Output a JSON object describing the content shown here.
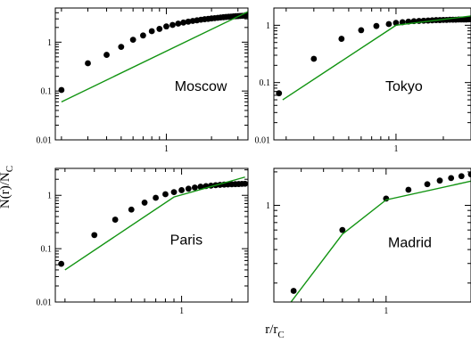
{
  "figure": {
    "ylabel": "N(r)/N",
    "ylabel_sub": "C",
    "xlabel": "r/r",
    "xlabel_sub": "C"
  },
  "chart_data": [
    {
      "type": "scatter",
      "city": "Moscow",
      "xscale": "log",
      "yscale": "log",
      "xlim": [
        0.182,
        3.5
      ],
      "ylim": [
        0.01,
        5
      ],
      "xticks": [
        {
          "v": 1,
          "label": "1"
        }
      ],
      "yticks": [
        {
          "v": 0.01,
          "label": "0.01"
        },
        {
          "v": 0.1,
          "label": "0.1"
        },
        {
          "v": 1,
          "label": "1"
        }
      ],
      "legend": "none",
      "series": [
        {
          "kind": "points",
          "x": [
            0.2,
            0.3,
            0.4,
            0.5,
            0.6,
            0.7,
            0.8,
            0.9,
            1.0,
            1.1,
            1.2,
            1.3,
            1.4,
            1.5,
            1.6,
            1.7,
            1.8,
            1.9,
            2.0,
            2.1,
            2.2,
            2.3,
            2.4,
            2.5,
            2.6,
            2.7,
            2.8,
            2.9,
            3.0,
            3.1,
            3.2,
            3.3,
            3.4,
            3.5
          ],
          "y": [
            0.105,
            0.37,
            0.55,
            0.8,
            1.12,
            1.37,
            1.68,
            1.87,
            2.1,
            2.25,
            2.4,
            2.52,
            2.63,
            2.72,
            2.8,
            2.88,
            2.95,
            3.0,
            3.06,
            3.1,
            3.15,
            3.2,
            3.24,
            3.28,
            3.31,
            3.34,
            3.37,
            3.4,
            3.42,
            3.44,
            3.46,
            3.48,
            3.5,
            3.52
          ]
        },
        {
          "kind": "line",
          "x": [
            0.2,
            3.5
          ],
          "y": [
            0.06,
            4.2
          ]
        }
      ]
    },
    {
      "type": "scatter",
      "city": "Tokyo",
      "xscale": "log",
      "yscale": "log",
      "xlim": [
        0.167,
        3.0
      ],
      "ylim": [
        0.01,
        2.0
      ],
      "xticks": [
        {
          "v": 1,
          "label": "1"
        }
      ],
      "yticks": [
        {
          "v": 0.01,
          "label": "0.01"
        },
        {
          "v": 0.1,
          "label": "0.1"
        },
        {
          "v": 1,
          "label": "1"
        }
      ],
      "legend": "none",
      "series": [
        {
          "kind": "points",
          "x": [
            0.18,
            0.3,
            0.45,
            0.6,
            0.75,
            0.9,
            1.0,
            1.1,
            1.2,
            1.3,
            1.4,
            1.5,
            1.6,
            1.7,
            1.8,
            1.9,
            2.0,
            2.1,
            2.2,
            2.3,
            2.4,
            2.5,
            2.6,
            2.7,
            2.8,
            2.9,
            3.0
          ],
          "y": [
            0.065,
            0.26,
            0.58,
            0.82,
            0.97,
            1.05,
            1.1,
            1.13,
            1.16,
            1.18,
            1.19,
            1.2,
            1.21,
            1.22,
            1.23,
            1.23,
            1.24,
            1.24,
            1.25,
            1.25,
            1.25,
            1.26,
            1.26,
            1.26,
            1.26,
            1.27,
            1.27
          ]
        },
        {
          "kind": "line",
          "x": [
            0.19,
            1.0,
            3.0
          ],
          "y": [
            0.05,
            1.0,
            1.45
          ]
        }
      ]
    },
    {
      "type": "scatter",
      "city": "Paris",
      "xscale": "log",
      "yscale": "log",
      "xlim": [
        0.175,
        2.5
      ],
      "ylim": [
        0.01,
        3.2
      ],
      "xticks": [
        {
          "v": 1,
          "label": "1"
        }
      ],
      "yticks": [
        {
          "v": 0.01,
          "label": "0.01"
        },
        {
          "v": 0.1,
          "label": "0.1"
        },
        {
          "v": 1,
          "label": "1"
        }
      ],
      "legend": "none",
      "series": [
        {
          "kind": "points",
          "x": [
            0.19,
            0.3,
            0.4,
            0.5,
            0.6,
            0.7,
            0.8,
            0.9,
            1.0,
            1.1,
            1.2,
            1.3,
            1.4,
            1.5,
            1.6,
            1.7,
            1.8,
            1.9,
            2.0,
            2.1,
            2.2,
            2.3,
            2.4
          ],
          "y": [
            0.052,
            0.18,
            0.35,
            0.54,
            0.73,
            0.9,
            1.05,
            1.15,
            1.25,
            1.33,
            1.4,
            1.45,
            1.49,
            1.52,
            1.55,
            1.57,
            1.59,
            1.6,
            1.61,
            1.62,
            1.63,
            1.64,
            1.65
          ]
        },
        {
          "kind": "line",
          "x": [
            0.2,
            0.9,
            2.4
          ],
          "y": [
            0.04,
            0.93,
            2.2
          ]
        }
      ]
    },
    {
      "type": "scatter",
      "city": "Madrid",
      "xscale": "log",
      "yscale": "log",
      "xlim": [
        0.4,
        2.0
      ],
      "ylim": [
        0.135,
        2.15
      ],
      "xticks": [
        {
          "v": 1,
          "label": "1"
        }
      ],
      "yticks": [
        {
          "v": 1,
          "label": "1"
        }
      ],
      "legend": "none",
      "series": [
        {
          "kind": "points",
          "x": [
            0.47,
            0.7,
            1.0,
            1.2,
            1.4,
            1.55,
            1.7,
            1.85,
            2.0
          ],
          "y": [
            0.17,
            0.6,
            1.15,
            1.38,
            1.55,
            1.67,
            1.76,
            1.83,
            1.9
          ]
        },
        {
          "kind": "line",
          "x": [
            0.46,
            0.7,
            1.0,
            2.0
          ],
          "y": [
            0.135,
            0.55,
            1.12,
            1.65
          ]
        }
      ]
    }
  ]
}
